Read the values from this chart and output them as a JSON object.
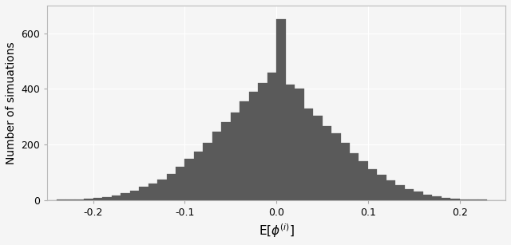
{
  "title": "",
  "xlabel": "E[$\\phi^{(i)}$]",
  "ylabel": "Number of simuations",
  "xlim": [
    -0.25,
    0.25
  ],
  "ylim": [
    0,
    700
  ],
  "bar_color": "#5a5a5a",
  "bar_edge_color": "#5a5a5a",
  "background_color": "#f5f5f5",
  "grid_color": "#ffffff",
  "yticks": [
    0,
    200,
    400,
    600
  ],
  "xticks": [
    -0.2,
    -0.1,
    0.0,
    0.1,
    0.2
  ],
  "bin_edges": [
    -0.25,
    -0.24,
    -0.23,
    -0.22,
    -0.21,
    -0.2,
    -0.19,
    -0.18,
    -0.17,
    -0.16,
    -0.15,
    -0.14,
    -0.13,
    -0.12,
    -0.11,
    -0.1,
    -0.09,
    -0.08,
    -0.07,
    -0.06,
    -0.05,
    -0.04,
    -0.03,
    -0.02,
    -0.01,
    0.0,
    0.01,
    0.02,
    0.03,
    0.04,
    0.05,
    0.06,
    0.07,
    0.08,
    0.09,
    0.1,
    0.11,
    0.12,
    0.13,
    0.14,
    0.15,
    0.16,
    0.17,
    0.18,
    0.19,
    0.2,
    0.21,
    0.22,
    0.23,
    0.24,
    0.25
  ],
  "bin_counts": [
    0,
    1,
    2,
    3,
    5,
    8,
    12,
    18,
    25,
    35,
    47,
    60,
    75,
    95,
    120,
    150,
    175,
    205,
    245,
    280,
    315,
    355,
    390,
    420,
    460,
    650,
    415,
    400,
    330,
    305,
    265,
    240,
    205,
    170,
    140,
    110,
    90,
    70,
    55,
    40,
    30,
    20,
    13,
    8,
    4,
    2,
    1,
    1,
    0,
    0
  ]
}
